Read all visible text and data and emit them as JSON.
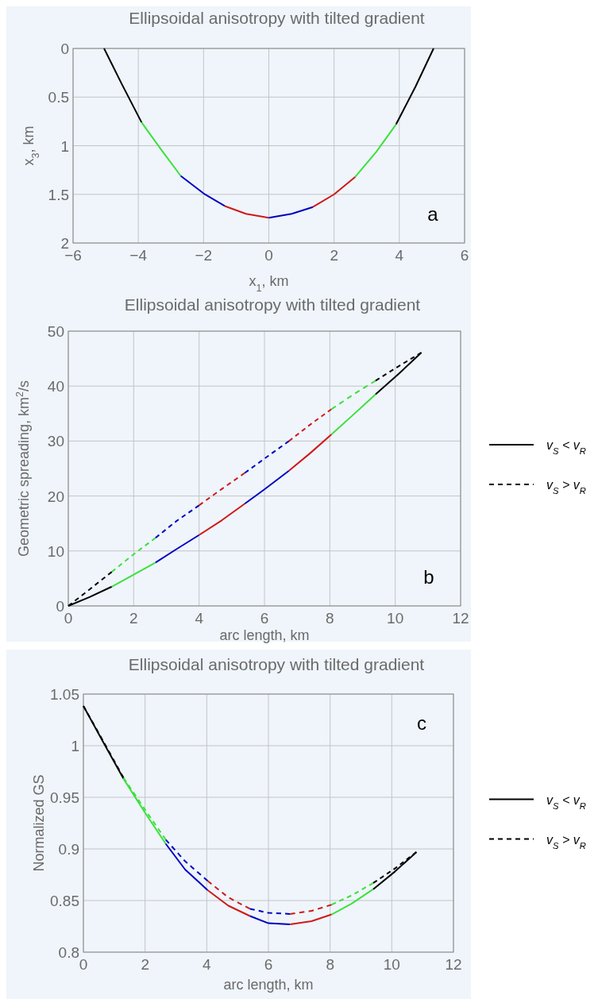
{
  "chart_data": [
    {
      "type": "line",
      "title": "Ellipsoidal anisotropy with tilted gradient",
      "xlabel": "x$_{1}$, km",
      "ylabel": "x$_{3}$, km",
      "xlim": [
        -6,
        6
      ],
      "xticks": [
        -6,
        -4,
        -2,
        0,
        2,
        4,
        6
      ],
      "ylim": [
        2,
        0
      ],
      "yticks": [
        0,
        0.5,
        1,
        1.5,
        2
      ],
      "grid": true,
      "legend": false,
      "annotations": [
        "a"
      ],
      "series": [
        {
          "color": "#000000",
          "line_style": "solid",
          "x": [
            -5.05,
            -4.5,
            -3.9
          ],
          "values": [
            0,
            0.37,
            0.76
          ]
        },
        {
          "color": "#3de03d",
          "line_style": "solid",
          "x": [
            -3.9,
            -3.3,
            -2.7
          ],
          "values": [
            0.76,
            1.04,
            1.31
          ]
        },
        {
          "color": "#0000c0",
          "line_style": "solid",
          "x": [
            -2.7,
            -2,
            -1.35
          ],
          "values": [
            1.31,
            1.49,
            1.62
          ]
        },
        {
          "color": "#d01818",
          "line_style": "solid",
          "x": [
            -1.35,
            -0.7,
            0
          ],
          "values": [
            1.62,
            1.7,
            1.74
          ]
        },
        {
          "color": "#0000c0",
          "line_style": "solid",
          "x": [
            0,
            0.7,
            1.35
          ],
          "values": [
            1.74,
            1.7,
            1.63
          ]
        },
        {
          "color": "#d01818",
          "line_style": "solid",
          "x": [
            1.35,
            2,
            2.65
          ],
          "values": [
            1.63,
            1.5,
            1.32
          ]
        },
        {
          "color": "#3de03d",
          "line_style": "solid",
          "x": [
            2.65,
            3.3,
            3.9
          ],
          "values": [
            1.32,
            1.06,
            0.78
          ]
        },
        {
          "color": "#000000",
          "line_style": "solid",
          "x": [
            3.9,
            4.5,
            5.05
          ],
          "values": [
            0.78,
            0.39,
            0
          ]
        }
      ]
    },
    {
      "type": "line",
      "title": "Ellipsoidal anisotropy with tilted gradient",
      "xlabel": "arc length, km",
      "ylabel": "Geometric spreading, km$^{2}$/s",
      "xlim": [
        0,
        12
      ],
      "xticks": [
        0,
        2,
        4,
        6,
        8,
        10,
        12
      ],
      "ylim": [
        0,
        50
      ],
      "yticks": [
        0,
        10,
        20,
        30,
        40,
        50
      ],
      "grid": true,
      "legend": "right",
      "annotations": [
        "b"
      ],
      "series": [
        {
          "name": "v$_{S}$ < v$_{R}$",
          "color": "#000000",
          "line_style": "solid",
          "x": [
            0,
            0.65,
            1.33
          ],
          "values": [
            0,
            1.6,
            3.5
          ]
        },
        {
          "color": "#3de03d",
          "line_style": "solid",
          "x": [
            1.33,
            2,
            2.67
          ],
          "values": [
            3.5,
            5.7,
            7.9
          ]
        },
        {
          "color": "#0000c0",
          "line_style": "solid",
          "x": [
            2.67,
            3.3,
            4
          ],
          "values": [
            7.9,
            10.3,
            12.9
          ]
        },
        {
          "color": "#d01818",
          "line_style": "solid",
          "x": [
            4,
            4.7,
            5.4
          ],
          "values": [
            12.9,
            15.6,
            18.6
          ]
        },
        {
          "color": "#0000c0",
          "line_style": "solid",
          "x": [
            5.4,
            6,
            6.75
          ],
          "values": [
            18.6,
            21.2,
            24.6
          ]
        },
        {
          "color": "#d01818",
          "line_style": "solid",
          "x": [
            6.75,
            7.4,
            8.05
          ],
          "values": [
            24.6,
            27.8,
            31.2
          ]
        },
        {
          "color": "#3de03d",
          "line_style": "solid",
          "x": [
            8.05,
            8.7,
            9.4
          ],
          "values": [
            31.2,
            34.7,
            38.5
          ]
        },
        {
          "color": "#000000",
          "line_style": "solid",
          "x": [
            9.4,
            10.1,
            10.8
          ],
          "values": [
            38.5,
            42.2,
            46.1
          ]
        },
        {
          "name": "v$_{S}$ > v$_{R}$",
          "color": "#000000",
          "line_style": "dashed",
          "x": [
            0,
            0.65,
            1.33
          ],
          "values": [
            0,
            3.0,
            6.2
          ]
        },
        {
          "color": "#3de03d",
          "line_style": "dashed",
          "x": [
            1.33,
            2,
            2.67
          ],
          "values": [
            6.2,
            9.4,
            12.4
          ]
        },
        {
          "color": "#0000c0",
          "line_style": "dashed",
          "x": [
            2.67,
            3.3,
            4
          ],
          "values": [
            12.4,
            15.4,
            18.3
          ]
        },
        {
          "color": "#d01818",
          "line_style": "dashed",
          "x": [
            4,
            4.7,
            5.4
          ],
          "values": [
            18.3,
            21.3,
            24.2
          ]
        },
        {
          "color": "#0000c0",
          "line_style": "dashed",
          "x": [
            5.4,
            6,
            6.75
          ],
          "values": [
            24.2,
            26.8,
            30.0
          ]
        },
        {
          "color": "#d01818",
          "line_style": "dashed",
          "x": [
            6.75,
            7.4,
            8.05
          ],
          "values": [
            30.0,
            33.0,
            35.8
          ]
        },
        {
          "color": "#3de03d",
          "line_style": "dashed",
          "x": [
            8.05,
            8.7,
            9.4
          ],
          "values": [
            35.8,
            38.4,
            41.0
          ]
        },
        {
          "color": "#000000",
          "line_style": "dashed",
          "x": [
            9.4,
            10.1,
            10.8
          ],
          "values": [
            41.0,
            43.6,
            46.1
          ]
        }
      ]
    },
    {
      "type": "line",
      "title": "Ellipsoidal anisotropy with tilted gradient",
      "xlabel": "arc length, km",
      "ylabel": "Normalized GS",
      "xlim": [
        0,
        12
      ],
      "xticks": [
        0,
        2,
        4,
        6,
        8,
        10,
        12
      ],
      "ylim": [
        0.8,
        1.05
      ],
      "yticks": [
        0.8,
        0.85,
        0.9,
        0.95,
        1,
        1.05
      ],
      "grid": true,
      "legend": "right",
      "annotations": [
        "c"
      ],
      "series": [
        {
          "name": "v$_{S}$ < v$_{R}$",
          "color": "#000000",
          "line_style": "solid",
          "x": [
            0,
            0.65,
            1.3
          ],
          "values": [
            1.0385,
            1.003,
            0.968
          ]
        },
        {
          "color": "#3de03d",
          "line_style": "solid",
          "x": [
            1.3,
            2,
            2.67
          ],
          "values": [
            0.968,
            0.935,
            0.905
          ]
        },
        {
          "color": "#0000c0",
          "line_style": "solid",
          "x": [
            2.67,
            3.3,
            4.03
          ],
          "values": [
            0.905,
            0.88,
            0.86
          ]
        },
        {
          "color": "#d01818",
          "line_style": "solid",
          "x": [
            4.03,
            4.7,
            5.4
          ],
          "values": [
            0.86,
            0.845,
            0.835
          ]
        },
        {
          "color": "#0000c0",
          "line_style": "solid",
          "x": [
            5.4,
            6,
            6.7
          ],
          "values": [
            0.835,
            0.828,
            0.827
          ]
        },
        {
          "color": "#d01818",
          "line_style": "solid",
          "x": [
            6.7,
            7.4,
            8.05
          ],
          "values": [
            0.827,
            0.83,
            0.8365
          ]
        },
        {
          "color": "#3de03d",
          "line_style": "solid",
          "x": [
            8.05,
            8.7,
            9.4
          ],
          "values": [
            0.8365,
            0.847,
            0.861
          ]
        },
        {
          "color": "#000000",
          "line_style": "solid",
          "x": [
            9.4,
            10.1,
            10.8
          ],
          "values": [
            0.861,
            0.878,
            0.897
          ]
        },
        {
          "name": "v$_{S}$ > v$_{R}$",
          "color": "#000000",
          "line_style": "dashed",
          "x": [
            0,
            0.65,
            1.3
          ],
          "values": [
            1.0385,
            1.004,
            0.969
          ]
        },
        {
          "color": "#3de03d",
          "line_style": "dashed",
          "x": [
            1.3,
            2,
            2.67
          ],
          "values": [
            0.969,
            0.938,
            0.909
          ]
        },
        {
          "color": "#0000c0",
          "line_style": "dashed",
          "x": [
            2.67,
            3.3,
            4.03
          ],
          "values": [
            0.909,
            0.888,
            0.869
          ]
        },
        {
          "color": "#d01818",
          "line_style": "dashed",
          "x": [
            4.03,
            4.7,
            5.4
          ],
          "values": [
            0.869,
            0.853,
            0.842
          ]
        },
        {
          "color": "#0000c0",
          "line_style": "dashed",
          "x": [
            5.4,
            6,
            6.7
          ],
          "values": [
            0.842,
            0.838,
            0.837
          ]
        },
        {
          "color": "#d01818",
          "line_style": "dashed",
          "x": [
            6.7,
            7.4,
            8.05
          ],
          "values": [
            0.837,
            0.84,
            0.846
          ]
        },
        {
          "color": "#3de03d",
          "line_style": "dashed",
          "x": [
            8.05,
            8.7,
            9.4
          ],
          "values": [
            0.846,
            0.855,
            0.867
          ]
        },
        {
          "color": "#000000",
          "line_style": "dashed",
          "x": [
            9.4,
            10.1,
            10.8
          ],
          "values": [
            0.867,
            0.881,
            0.897
          ]
        }
      ]
    }
  ]
}
